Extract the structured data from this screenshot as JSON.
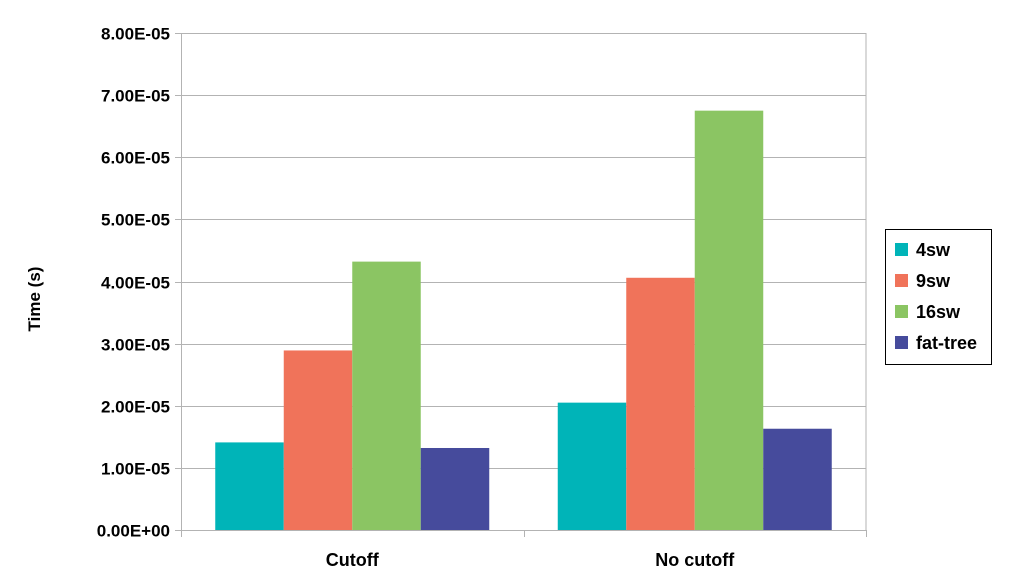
{
  "chart_data": {
    "type": "bar",
    "title": "",
    "xlabel": "",
    "ylabel": "Time (s)",
    "categories": [
      "Cutoff",
      "No cutoff"
    ],
    "ylim": [
      0,
      8e-05
    ],
    "yticks": [
      0,
      1e-05,
      2e-05,
      3e-05,
      4e-05,
      5e-05,
      6e-05,
      7e-05,
      8e-05
    ],
    "ytick_labels": [
      "0.00E+00",
      "1.00E-05",
      "2.00E-05",
      "3.00E-05",
      "4.00E-05",
      "5.00E-05",
      "6.00E-05",
      "7.00E-05",
      "8.00E-05"
    ],
    "grid": true,
    "legend_position": "right",
    "series": [
      {
        "name": "4sw",
        "color": "#00B4B8",
        "values": [
          1.41e-05,
          2.05e-05
        ]
      },
      {
        "name": "9sw",
        "color": "#F0735A",
        "values": [
          2.89e-05,
          4.06e-05
        ]
      },
      {
        "name": "16sw",
        "color": "#8BC563",
        "values": [
          4.32e-05,
          6.75e-05
        ]
      },
      {
        "name": "fat-tree",
        "color": "#464B9C",
        "values": [
          1.32e-05,
          1.63e-05
        ]
      }
    ]
  }
}
